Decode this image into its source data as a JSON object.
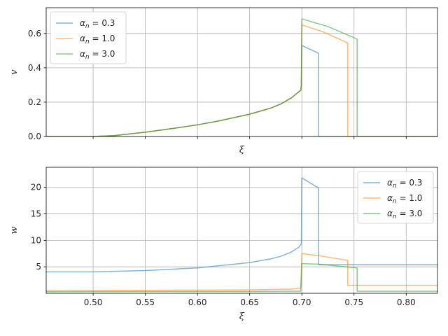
{
  "chart_data": [
    {
      "type": "line",
      "title": "",
      "xlabel": "ξ",
      "ylabel": "v",
      "xlim": [
        0.455,
        0.83
      ],
      "ylim": [
        0.0,
        0.75
      ],
      "xticks": [
        0.5,
        0.55,
        0.6,
        0.65,
        0.7,
        0.75,
        0.8
      ],
      "xtick_labels_visible": false,
      "yticks": [
        0.0,
        0.2,
        0.4,
        0.6
      ],
      "ytick_labels": [
        "0.0",
        "0.2",
        "0.4",
        "0.6"
      ],
      "grid": true,
      "legend_position": "upper-left",
      "series": [
        {
          "name": "α_n = 0.3",
          "color": "#1f77b4",
          "points": [
            [
              0.455,
              0.0
            ],
            [
              0.5,
              0.0
            ],
            [
              0.52,
              0.005
            ],
            [
              0.55,
              0.025
            ],
            [
              0.58,
              0.05
            ],
            [
              0.6,
              0.068
            ],
            [
              0.62,
              0.09
            ],
            [
              0.65,
              0.13
            ],
            [
              0.67,
              0.165
            ],
            [
              0.68,
              0.19
            ],
            [
              0.69,
              0.225
            ],
            [
              0.699,
              0.27
            ],
            [
              0.6995,
              0.3
            ],
            [
              0.7,
              0.53
            ],
            [
              0.716,
              0.485
            ],
            [
              0.716,
              0.0
            ],
            [
              0.83,
              0.0
            ]
          ]
        },
        {
          "name": "α_n = 1.0",
          "color": "#ff7f0e",
          "points": [
            [
              0.455,
              0.0
            ],
            [
              0.5,
              0.0
            ],
            [
              0.52,
              0.005
            ],
            [
              0.55,
              0.025
            ],
            [
              0.58,
              0.05
            ],
            [
              0.6,
              0.068
            ],
            [
              0.62,
              0.09
            ],
            [
              0.65,
              0.13
            ],
            [
              0.67,
              0.165
            ],
            [
              0.68,
              0.19
            ],
            [
              0.69,
              0.225
            ],
            [
              0.699,
              0.27
            ],
            [
              0.6995,
              0.3
            ],
            [
              0.7,
              0.65
            ],
            [
              0.72,
              0.61
            ],
            [
              0.744,
              0.545
            ],
            [
              0.744,
              0.0
            ],
            [
              0.83,
              0.0
            ]
          ]
        },
        {
          "name": "α_n = 3.0",
          "color": "#2ca02c",
          "points": [
            [
              0.455,
              0.0
            ],
            [
              0.5,
              0.0
            ],
            [
              0.52,
              0.005
            ],
            [
              0.55,
              0.025
            ],
            [
              0.58,
              0.05
            ],
            [
              0.6,
              0.068
            ],
            [
              0.62,
              0.09
            ],
            [
              0.65,
              0.13
            ],
            [
              0.67,
              0.165
            ],
            [
              0.68,
              0.19
            ],
            [
              0.69,
              0.225
            ],
            [
              0.699,
              0.27
            ],
            [
              0.6995,
              0.3
            ],
            [
              0.7,
              0.685
            ],
            [
              0.725,
              0.64
            ],
            [
              0.752,
              0.57
            ],
            [
              0.753,
              0.565
            ],
            [
              0.753,
              0.0
            ],
            [
              0.83,
              0.0
            ]
          ]
        }
      ]
    },
    {
      "type": "line",
      "title": "",
      "xlabel": "ξ",
      "ylabel": "w",
      "xlim": [
        0.455,
        0.83
      ],
      "ylim": [
        0.0,
        23.8
      ],
      "xticks": [
        0.5,
        0.55,
        0.6,
        0.65,
        0.7,
        0.75,
        0.8
      ],
      "xtick_labels": [
        "0.50",
        "0.55",
        "0.60",
        "0.65",
        "0.70",
        "0.75",
        "0.80"
      ],
      "yticks": [
        5,
        10,
        15,
        20
      ],
      "ytick_labels": [
        "5",
        "10",
        "15",
        "20"
      ],
      "grid": true,
      "legend_position": "upper-right",
      "series": [
        {
          "name": "α_n = 0.3",
          "color": "#1f77b4",
          "points": [
            [
              0.455,
              4.05
            ],
            [
              0.5,
              4.05
            ],
            [
              0.55,
              4.3
            ],
            [
              0.6,
              4.8
            ],
            [
              0.65,
              5.8
            ],
            [
              0.67,
              6.5
            ],
            [
              0.68,
              7.0
            ],
            [
              0.69,
              7.8
            ],
            [
              0.697,
              8.7
            ],
            [
              0.6995,
              9.3
            ],
            [
              0.7,
              21.8
            ],
            [
              0.716,
              19.9
            ],
            [
              0.716,
              5.4
            ],
            [
              0.83,
              5.4
            ]
          ]
        },
        {
          "name": "α_n = 1.0",
          "color": "#ff7f0e",
          "points": [
            [
              0.455,
              0.5
            ],
            [
              0.6,
              0.6
            ],
            [
              0.65,
              0.65
            ],
            [
              0.69,
              0.8
            ],
            [
              0.699,
              1.0
            ],
            [
              0.7,
              7.5
            ],
            [
              0.72,
              7.0
            ],
            [
              0.744,
              6.2
            ],
            [
              0.744,
              1.5
            ],
            [
              0.83,
              1.5
            ]
          ]
        },
        {
          "name": "α_n = 3.0",
          "color": "#2ca02c",
          "points": [
            [
              0.455,
              0.3
            ],
            [
              0.6,
              0.35
            ],
            [
              0.65,
              0.35
            ],
            [
              0.69,
              0.4
            ],
            [
              0.699,
              0.4
            ],
            [
              0.7,
              5.6
            ],
            [
              0.716,
              5.5
            ],
            [
              0.753,
              4.8
            ],
            [
              0.753,
              0.4
            ],
            [
              0.83,
              0.4
            ]
          ]
        }
      ]
    }
  ]
}
